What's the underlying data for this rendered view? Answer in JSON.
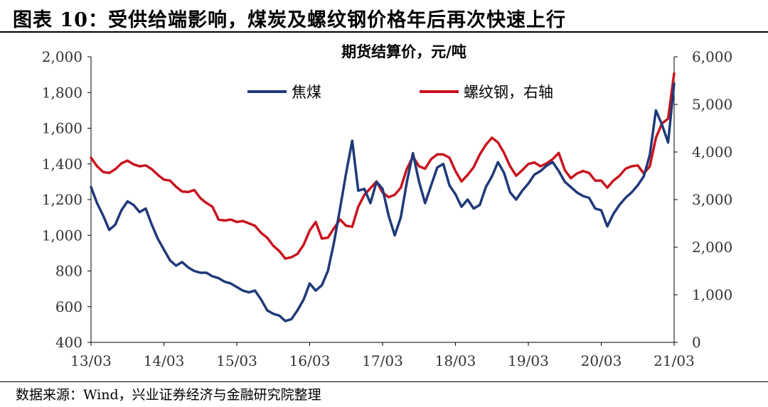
{
  "figure": {
    "title": "图表 10：受供给端影响，煤炭及螺纹钢价格年后再次快速上行",
    "source": "数据来源：Wind，兴业证券经济与金融研究院整理"
  },
  "chart_data": {
    "type": "line",
    "title": "期货结算价，元/吨",
    "x_ticks": [
      "13/03",
      "14/03",
      "15/03",
      "16/03",
      "17/03",
      "18/03",
      "19/03",
      "20/03",
      "21/03"
    ],
    "y_left": {
      "lim": [
        400,
        2000
      ],
      "ticks": [
        "400",
        "600",
        "800",
        "1,000",
        "1,200",
        "1,400",
        "1,600",
        "1,800",
        "2,000"
      ]
    },
    "y_right": {
      "lim": [
        0,
        6000
      ],
      "ticks": [
        "0",
        "1,000",
        "2,000",
        "3,000",
        "4,000",
        "5,000",
        "6,000"
      ]
    },
    "legend": {
      "placement": "top",
      "entries": [
        "焦煤",
        "螺纹钢，右轴"
      ]
    },
    "series": [
      {
        "name": "焦煤",
        "axis": "left",
        "color": "#1f3a7a",
        "points": [
          [
            "2013-03",
            1270
          ],
          [
            "2013-04",
            1180
          ],
          [
            "2013-05",
            1110
          ],
          [
            "2013-06",
            1030
          ],
          [
            "2013-07",
            1060
          ],
          [
            "2013-08",
            1140
          ],
          [
            "2013-09",
            1190
          ],
          [
            "2013-10",
            1170
          ],
          [
            "2013-11",
            1130
          ],
          [
            "2013-12",
            1150
          ],
          [
            "2014-01",
            1060
          ],
          [
            "2014-02",
            980
          ],
          [
            "2014-03",
            920
          ],
          [
            "2014-04",
            860
          ],
          [
            "2014-05",
            830
          ],
          [
            "2014-06",
            850
          ],
          [
            "2014-07",
            820
          ],
          [
            "2014-08",
            800
          ],
          [
            "2014-09",
            790
          ],
          [
            "2014-10",
            790
          ],
          [
            "2014-11",
            770
          ],
          [
            "2014-12",
            760
          ],
          [
            "2015-01",
            740
          ],
          [
            "2015-02",
            730
          ],
          [
            "2015-03",
            710
          ],
          [
            "2015-04",
            690
          ],
          [
            "2015-05",
            680
          ],
          [
            "2015-06",
            690
          ],
          [
            "2015-07",
            640
          ],
          [
            "2015-08",
            580
          ],
          [
            "2015-09",
            560
          ],
          [
            "2015-10",
            550
          ],
          [
            "2015-11",
            520
          ],
          [
            "2015-12",
            530
          ],
          [
            "2016-01",
            580
          ],
          [
            "2016-02",
            640
          ],
          [
            "2016-03",
            730
          ],
          [
            "2016-04",
            690
          ],
          [
            "2016-05",
            720
          ],
          [
            "2016-06",
            800
          ],
          [
            "2016-07",
            960
          ],
          [
            "2016-08",
            1150
          ],
          [
            "2016-09",
            1350
          ],
          [
            "2016-10",
            1530
          ],
          [
            "2016-11",
            1250
          ],
          [
            "2016-12",
            1260
          ],
          [
            "2017-01",
            1180
          ],
          [
            "2017-02",
            1300
          ],
          [
            "2017-03",
            1260
          ],
          [
            "2017-04",
            1110
          ],
          [
            "2017-05",
            1000
          ],
          [
            "2017-06",
            1100
          ],
          [
            "2017-07",
            1300
          ],
          [
            "2017-08",
            1460
          ],
          [
            "2017-09",
            1300
          ],
          [
            "2017-10",
            1180
          ],
          [
            "2017-11",
            1280
          ],
          [
            "2017-12",
            1380
          ],
          [
            "2018-01",
            1400
          ],
          [
            "2018-02",
            1280
          ],
          [
            "2018-03",
            1230
          ],
          [
            "2018-04",
            1160
          ],
          [
            "2018-05",
            1200
          ],
          [
            "2018-06",
            1150
          ],
          [
            "2018-07",
            1170
          ],
          [
            "2018-08",
            1270
          ],
          [
            "2018-09",
            1330
          ],
          [
            "2018-10",
            1410
          ],
          [
            "2018-11",
            1350
          ],
          [
            "2018-12",
            1240
          ],
          [
            "2019-01",
            1200
          ],
          [
            "2019-02",
            1250
          ],
          [
            "2019-03",
            1290
          ],
          [
            "2019-04",
            1340
          ],
          [
            "2019-05",
            1360
          ],
          [
            "2019-06",
            1390
          ],
          [
            "2019-07",
            1410
          ],
          [
            "2019-08",
            1360
          ],
          [
            "2019-09",
            1300
          ],
          [
            "2019-10",
            1270
          ],
          [
            "2019-11",
            1240
          ],
          [
            "2019-12",
            1220
          ],
          [
            "2020-01",
            1210
          ],
          [
            "2020-02",
            1150
          ],
          [
            "2020-03",
            1140
          ],
          [
            "2020-04",
            1050
          ],
          [
            "2020-05",
            1120
          ],
          [
            "2020-06",
            1170
          ],
          [
            "2020-07",
            1210
          ],
          [
            "2020-08",
            1240
          ],
          [
            "2020-09",
            1280
          ],
          [
            "2020-10",
            1330
          ],
          [
            "2020-11",
            1450
          ],
          [
            "2020-12",
            1700
          ],
          [
            "2021-01",
            1620
          ],
          [
            "2021-02",
            1520
          ],
          [
            "2021-03",
            1850
          ]
        ]
      },
      {
        "name": "螺纹钢，右轴",
        "axis": "right",
        "color": "#c8141e",
        "points": [
          [
            "2013-03",
            3880
          ],
          [
            "2013-04",
            3700
          ],
          [
            "2013-05",
            3580
          ],
          [
            "2013-06",
            3560
          ],
          [
            "2013-07",
            3640
          ],
          [
            "2013-08",
            3760
          ],
          [
            "2013-09",
            3820
          ],
          [
            "2013-10",
            3740
          ],
          [
            "2013-11",
            3700
          ],
          [
            "2013-12",
            3720
          ],
          [
            "2014-01",
            3640
          ],
          [
            "2014-02",
            3520
          ],
          [
            "2014-03",
            3420
          ],
          [
            "2014-04",
            3400
          ],
          [
            "2014-05",
            3270
          ],
          [
            "2014-06",
            3170
          ],
          [
            "2014-07",
            3160
          ],
          [
            "2014-08",
            3200
          ],
          [
            "2014-09",
            3030
          ],
          [
            "2014-10",
            2930
          ],
          [
            "2014-11",
            2850
          ],
          [
            "2014-12",
            2580
          ],
          [
            "2015-01",
            2560
          ],
          [
            "2015-02",
            2580
          ],
          [
            "2015-03",
            2530
          ],
          [
            "2015-04",
            2550
          ],
          [
            "2015-05",
            2500
          ],
          [
            "2015-06",
            2450
          ],
          [
            "2015-07",
            2300
          ],
          [
            "2015-08",
            2200
          ],
          [
            "2015-09",
            2030
          ],
          [
            "2015-10",
            1920
          ],
          [
            "2015-11",
            1760
          ],
          [
            "2015-12",
            1790
          ],
          [
            "2016-01",
            1860
          ],
          [
            "2016-02",
            2050
          ],
          [
            "2016-03",
            2350
          ],
          [
            "2016-04",
            2530
          ],
          [
            "2016-05",
            2180
          ],
          [
            "2016-06",
            2200
          ],
          [
            "2016-07",
            2400
          ],
          [
            "2016-08",
            2580
          ],
          [
            "2016-09",
            2450
          ],
          [
            "2016-10",
            2430
          ],
          [
            "2016-11",
            2850
          ],
          [
            "2016-12",
            3100
          ],
          [
            "2017-01",
            3240
          ],
          [
            "2017-02",
            3380
          ],
          [
            "2017-03",
            3150
          ],
          [
            "2017-04",
            3050
          ],
          [
            "2017-05",
            3100
          ],
          [
            "2017-06",
            3250
          ],
          [
            "2017-07",
            3650
          ],
          [
            "2017-08",
            3900
          ],
          [
            "2017-09",
            3700
          ],
          [
            "2017-10",
            3650
          ],
          [
            "2017-11",
            3850
          ],
          [
            "2017-12",
            3950
          ],
          [
            "2018-01",
            3950
          ],
          [
            "2018-02",
            3880
          ],
          [
            "2018-03",
            3600
          ],
          [
            "2018-04",
            3380
          ],
          [
            "2018-05",
            3520
          ],
          [
            "2018-06",
            3680
          ],
          [
            "2018-07",
            3950
          ],
          [
            "2018-08",
            4150
          ],
          [
            "2018-09",
            4300
          ],
          [
            "2018-10",
            4200
          ],
          [
            "2018-11",
            3980
          ],
          [
            "2018-12",
            3700
          ],
          [
            "2019-01",
            3500
          ],
          [
            "2019-02",
            3620
          ],
          [
            "2019-03",
            3750
          ],
          [
            "2019-04",
            3780
          ],
          [
            "2019-05",
            3700
          ],
          [
            "2019-06",
            3760
          ],
          [
            "2019-07",
            3850
          ],
          [
            "2019-08",
            3980
          ],
          [
            "2019-09",
            3620
          ],
          [
            "2019-10",
            3450
          ],
          [
            "2019-11",
            3550
          ],
          [
            "2019-12",
            3600
          ],
          [
            "2020-01",
            3560
          ],
          [
            "2020-02",
            3400
          ],
          [
            "2020-03",
            3400
          ],
          [
            "2020-04",
            3250
          ],
          [
            "2020-05",
            3400
          ],
          [
            "2020-06",
            3500
          ],
          [
            "2020-07",
            3650
          ],
          [
            "2020-08",
            3700
          ],
          [
            "2020-09",
            3720
          ],
          [
            "2020-10",
            3550
          ],
          [
            "2020-11",
            3700
          ],
          [
            "2020-12",
            4300
          ],
          [
            "2021-01",
            4600
          ],
          [
            "2021-02",
            4700
          ],
          [
            "2021-03",
            5650
          ]
        ]
      }
    ]
  }
}
